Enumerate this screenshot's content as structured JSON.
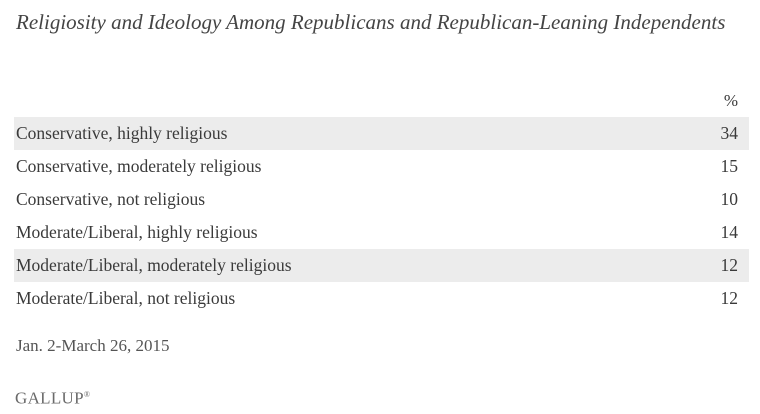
{
  "chart_data": {
    "type": "table",
    "title": "Religiosity and Ideology Among Republicans and Republican-Leaning Independents",
    "column_header": "%",
    "rows": [
      {
        "label": "Conservative, highly religious",
        "value": 34
      },
      {
        "label": "Conservative, moderately religious",
        "value": 15
      },
      {
        "label": "Conservative, not religious",
        "value": 10
      },
      {
        "label": "Moderate/Liberal, highly religious",
        "value": 14
      },
      {
        "label": "Moderate/Liberal, moderately religious",
        "value": 12
      },
      {
        "label": "Moderate/Liberal, not religious",
        "value": 12
      }
    ],
    "row_shading": [
      "#ececec",
      "none",
      "none",
      "none",
      "#ececec",
      "none"
    ],
    "footnote": "Jan. 2-March 26, 2015",
    "source_logo": "GALLUP"
  }
}
